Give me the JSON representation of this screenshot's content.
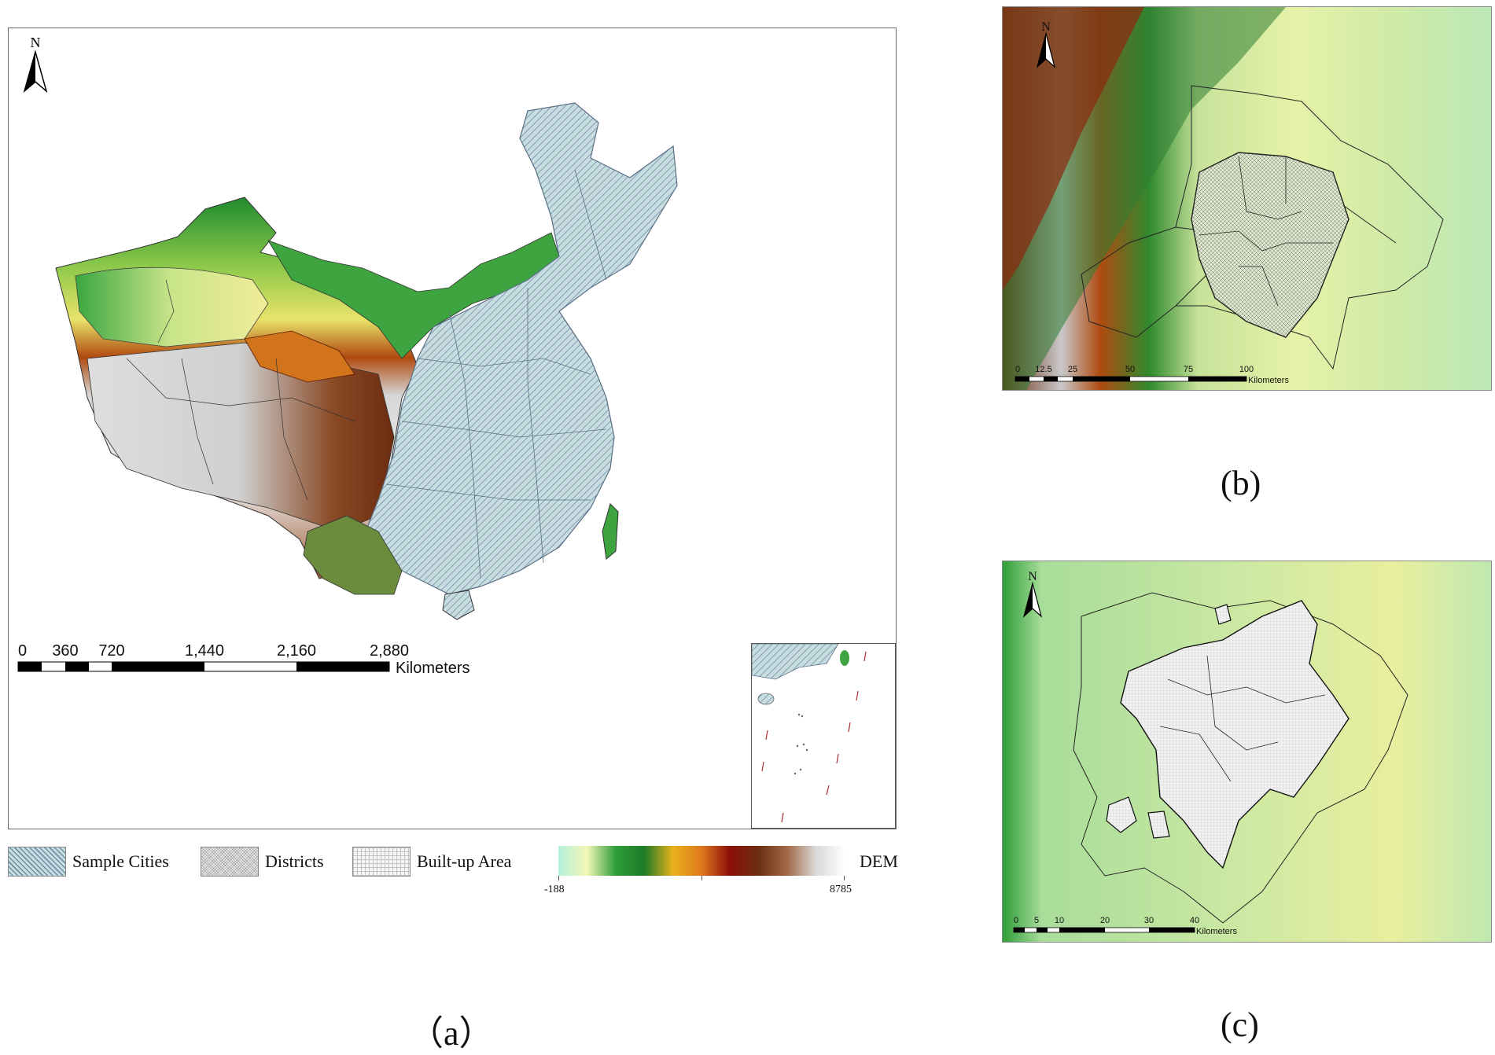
{
  "panel_a": {
    "north": "N",
    "scale_ticks": [
      "0",
      "360",
      "720",
      "1,440",
      "2,160",
      "2,880"
    ],
    "scale_unit": "Kilometers",
    "caption": "（a）"
  },
  "panel_b": {
    "north": "N",
    "scale_ticks": [
      "0",
      "12.5",
      "25",
      "50",
      "75",
      "100"
    ],
    "scale_unit": "Kilometers",
    "caption": "(b)"
  },
  "panel_c": {
    "north": "N",
    "scale_ticks": [
      "0",
      "5",
      "10",
      "20",
      "30",
      "40"
    ],
    "scale_unit": "Kilometers",
    "caption": "(c)"
  },
  "legend": {
    "items": [
      {
        "label": "Sample Cities",
        "pattern": "diagonal-hatch"
      },
      {
        "label": "Districts",
        "pattern": "dense-crosshatch"
      },
      {
        "label": "Built-up Area",
        "pattern": "grid"
      }
    ],
    "dem_label": "DEM",
    "dem_min": "-188",
    "dem_max": "8785",
    "dem_colors": [
      "#b5f0dc",
      "#f3f7b5",
      "#2f9e3a",
      "#1e7a27",
      "#e8b21c",
      "#e0781e",
      "#8c0e09",
      "#6b2e12",
      "#a36a47",
      "#d9d9d9",
      "#ffffff"
    ]
  }
}
